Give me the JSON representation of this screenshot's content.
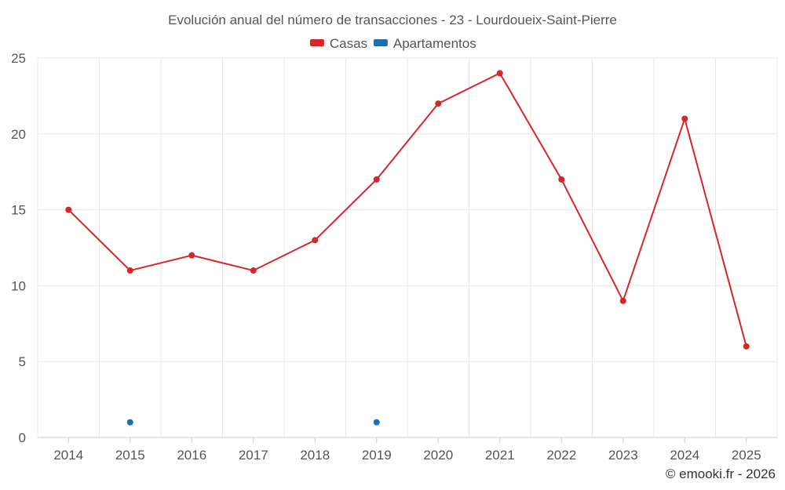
{
  "chart_data": {
    "type": "line",
    "title": "Evolución anual del número de transacciones - 23 - Lourdoueix-Saint-Pierre",
    "categories": [
      "2014",
      "2015",
      "2016",
      "2017",
      "2018",
      "2019",
      "2020",
      "2021",
      "2022",
      "2023",
      "2024",
      "2025"
    ],
    "ylim": [
      0,
      25
    ],
    "yticks": [
      0,
      5,
      10,
      15,
      20,
      25
    ],
    "grid": true,
    "legend_position": "top-center",
    "series": [
      {
        "name": "Casas",
        "color": "#d62728",
        "values": [
          15,
          11,
          12,
          11,
          13,
          17,
          22,
          24,
          17,
          9,
          21,
          6
        ]
      },
      {
        "name": "Apartamentos",
        "color": "#1f6fb0",
        "values": [
          null,
          1,
          null,
          null,
          null,
          1,
          null,
          null,
          null,
          null,
          null,
          null
        ]
      }
    ]
  },
  "credit": "© emooki.fr - 2026"
}
